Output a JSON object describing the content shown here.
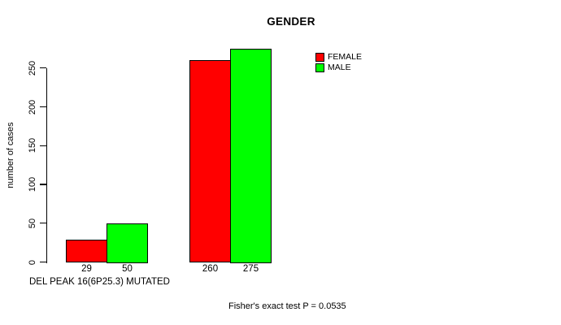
{
  "chart_data": {
    "type": "bar",
    "title": "GENDER",
    "ylabel": "number of cases",
    "xlabel": "DEL PEAK 16(6P25.3) MUTATED",
    "annotation": "Fisher's exact test P = 0.0535",
    "categories": [
      "",
      ""
    ],
    "series": [
      {
        "name": "FEMALE",
        "color": "#ff0000",
        "values": [
          29,
          260
        ]
      },
      {
        "name": "MALE",
        "color": "#00ff00",
        "values": [
          50,
          275
        ]
      }
    ],
    "bar_value_labels": [
      "29",
      "50",
      "260",
      "275"
    ],
    "yticks": [
      0,
      50,
      100,
      150,
      200,
      250
    ],
    "ylim": [
      0,
      286
    ],
    "grid": false,
    "legend_position": "top-right",
    "legend": [
      {
        "label": "FEMALE",
        "color": "#ff0000"
      },
      {
        "label": "MALE",
        "color": "#00ff00"
      }
    ],
    "axis_color": "#000000",
    "background_color": "#ffffff"
  }
}
